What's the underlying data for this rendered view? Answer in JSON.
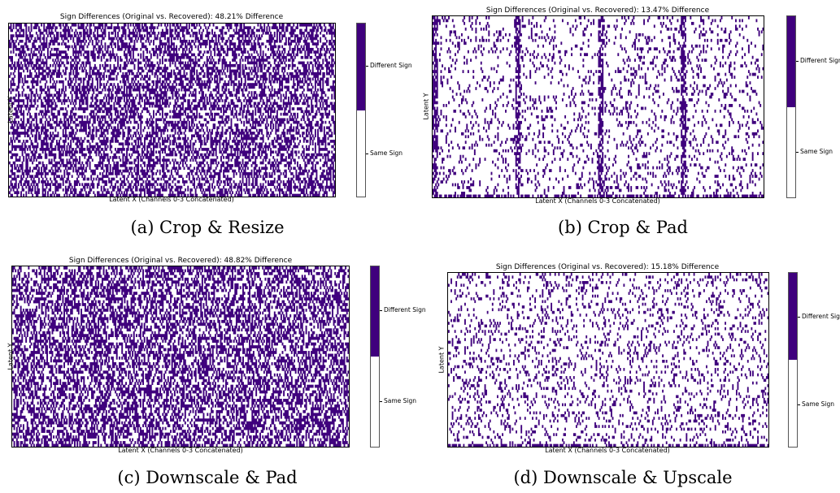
{
  "colors": {
    "different": "#3f007d",
    "same": "#ffffff"
  },
  "chart_data": [
    {
      "type": "heatmap",
      "title": "Sign Differences (Original vs. Recovered): 48.21% Difference",
      "xlabel": "Latent X (Channels 0-3 Concatenated)",
      "ylabel": "Latent Y",
      "difference_percent": 48.21,
      "colorbar_labels": [
        "Different Sign",
        "Same Sign"
      ],
      "vertical_bands": false,
      "caption": "(a) Crop & Resize"
    },
    {
      "type": "heatmap",
      "title": "Sign Differences (Original vs. Recovered): 13.47% Difference",
      "xlabel": "Latent X (Channels 0-3 Concatenated)",
      "ylabel": "Latent Y",
      "difference_percent": 13.47,
      "colorbar_labels": [
        "Different Sign",
        "Same Sign"
      ],
      "vertical_bands": true,
      "caption": "(b) Crop & Pad"
    },
    {
      "type": "heatmap",
      "title": "Sign Differences (Original vs. Recovered): 48.82% Difference",
      "xlabel": "Latent X (Channels 0-3 Concatenated)",
      "ylabel": "Latent Y",
      "difference_percent": 48.82,
      "colorbar_labels": [
        "Different Sign",
        "Same Sign"
      ],
      "vertical_bands": false,
      "caption": "(c) Downscale & Pad"
    },
    {
      "type": "heatmap",
      "title": "Sign Differences (Original vs. Recovered): 15.18% Difference",
      "xlabel": "Latent X (Channels 0-3 Concatenated)",
      "ylabel": "Latent Y",
      "difference_percent": 15.18,
      "colorbar_labels": [
        "Different Sign",
        "Same Sign"
      ],
      "vertical_bands": false,
      "caption": "(d) Downscale & Upscale"
    }
  ]
}
